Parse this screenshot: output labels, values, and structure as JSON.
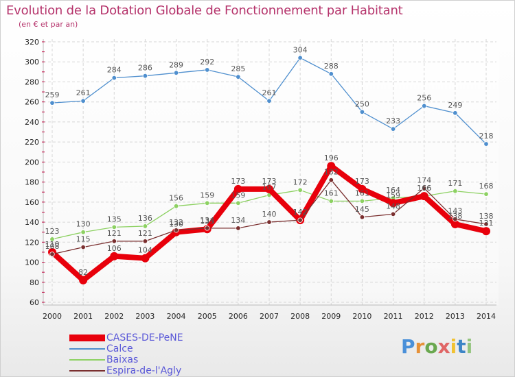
{
  "header": {
    "title": "Evolution de la Dotation Globale de Fonctionnement par Habitant",
    "subtitle": "(en € et par an)"
  },
  "logo": {
    "text": "Proxiti"
  },
  "colors": {
    "title": "#b5336b",
    "legend_text": "#5a58d8",
    "grid": "#d6d6d6",
    "axis_ticks": "#c0003c"
  },
  "chart_data": {
    "type": "line",
    "categories": [
      "2000",
      "2001",
      "2002",
      "2003",
      "2004",
      "2005",
      "2006",
      "2007",
      "2008",
      "2009",
      "2010",
      "2011",
      "2012",
      "2013",
      "2014"
    ],
    "ylim": [
      60,
      320
    ],
    "yticks": [
      60,
      80,
      100,
      120,
      140,
      160,
      180,
      200,
      220,
      240,
      260,
      280,
      300,
      320
    ],
    "grid": true,
    "legend_position": "bottom-left",
    "series": [
      {
        "name": "CASES-DE-PeNE",
        "color": "#e8000b",
        "values": [
          110,
          82,
          106,
          104,
          130,
          133,
          173,
          173,
          142,
          196,
          173,
          159,
          166,
          138,
          131
        ],
        "thick": true
      },
      {
        "name": "Calce",
        "color": "#4f8fce",
        "values": [
          259,
          261,
          284,
          286,
          289,
          292,
          285,
          261,
          304,
          288,
          250,
          233,
          256,
          249,
          218
        ]
      },
      {
        "name": "Baixas",
        "color": "#8dd162",
        "values": [
          123,
          130,
          135,
          136,
          156,
          159,
          159,
          167,
          172,
          161,
          161,
          164,
          166,
          171,
          168
        ]
      },
      {
        "name": "Espira-de-l'Agly",
        "color": "#7a2f2f",
        "values": [
          108,
          115,
          121,
          121,
          132,
          134,
          134,
          140,
          142,
          182,
          145,
          148,
          174,
          143,
          138
        ]
      }
    ]
  }
}
